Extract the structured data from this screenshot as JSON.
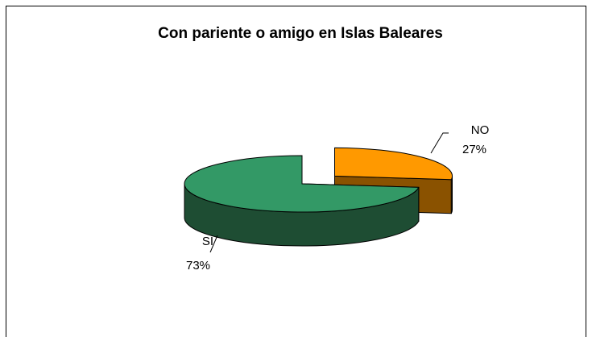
{
  "chart_data": {
    "type": "pie",
    "title": "Con pariente o amigo en Islas Baleares",
    "categories": [
      "NO",
      "SI"
    ],
    "values": [
      27,
      73
    ],
    "value_labels": [
      "27%",
      "73%"
    ],
    "colors": [
      "#ff9900",
      "#339966"
    ],
    "side_colors": [
      "#8a5200",
      "#1e4d33"
    ]
  }
}
